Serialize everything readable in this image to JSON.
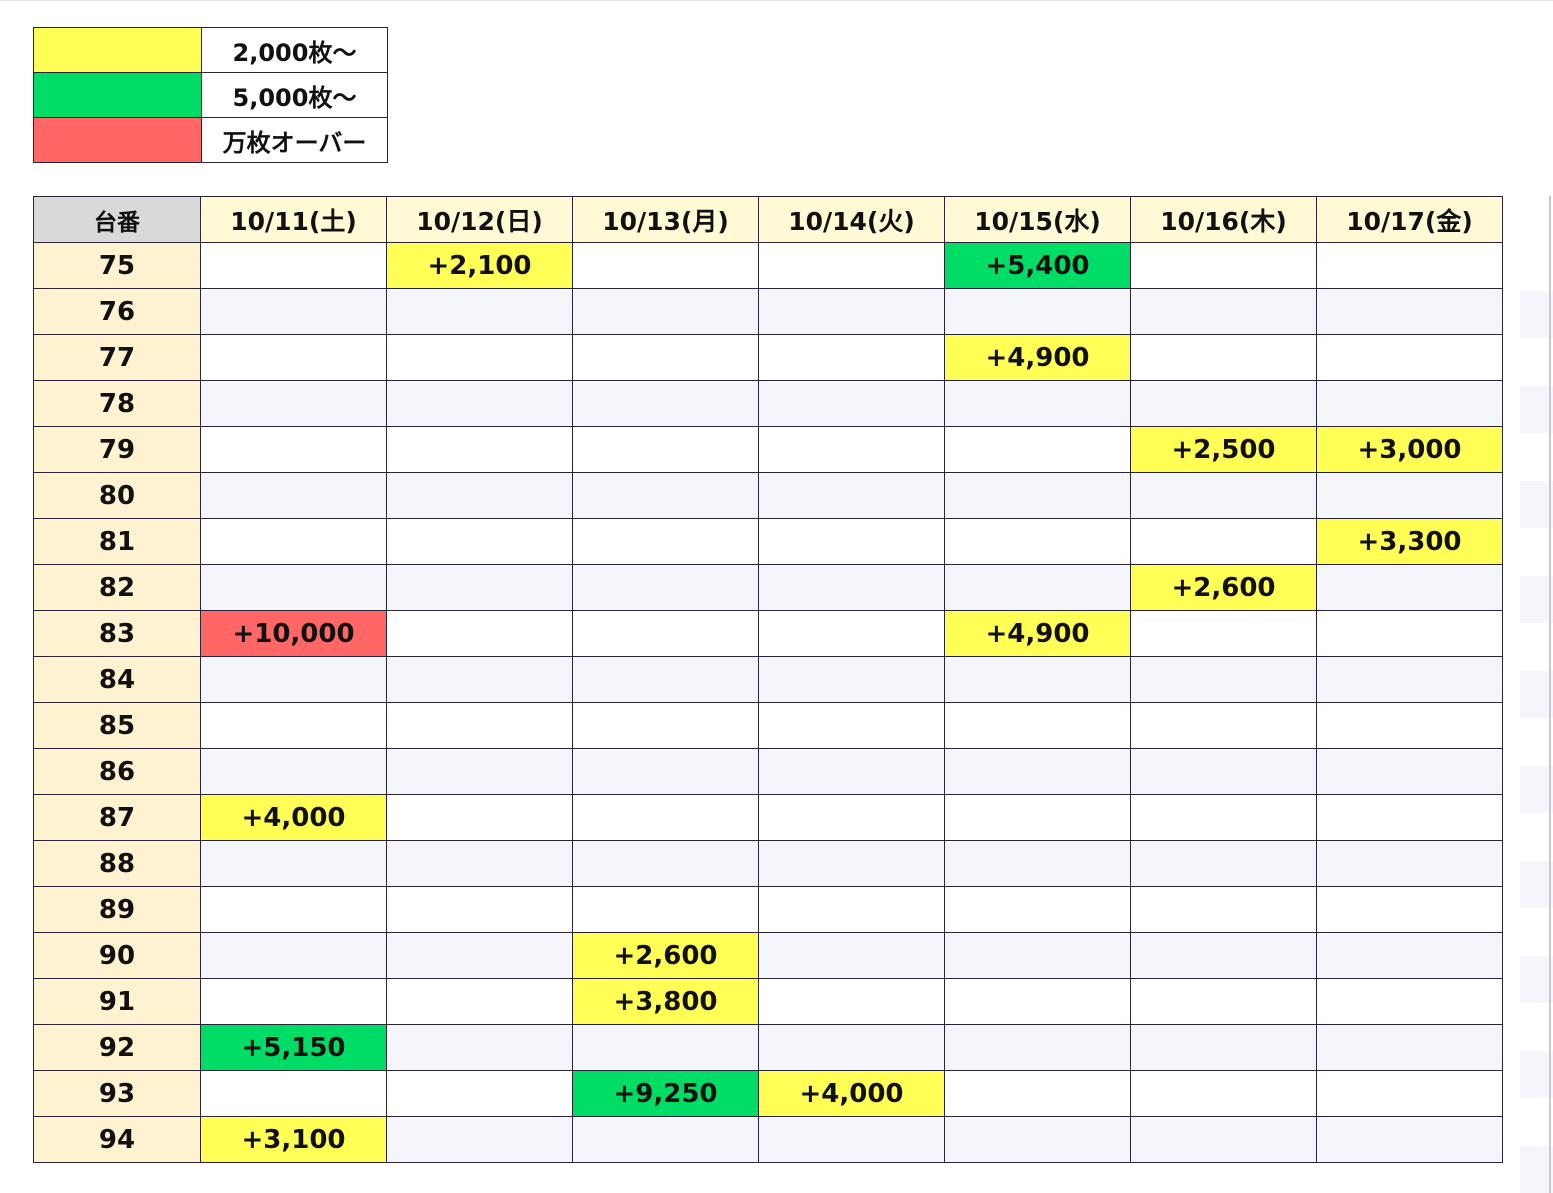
{
  "legend": [
    {
      "label": "2,000枚～",
      "color": "#ffff55"
    },
    {
      "label": "5,000枚～",
      "color": "#00dd66"
    },
    {
      "label": "万枚オーバー",
      "color": "#ff6666"
    }
  ],
  "table": {
    "corner_label": "台番",
    "dates": [
      "10/11(土)",
      "10/12(日)",
      "10/13(月)",
      "10/14(火)",
      "10/15(水)",
      "10/16(木)",
      "10/17(金)"
    ],
    "rows": [
      {
        "machine": "75",
        "cells": [
          "",
          "+2,100",
          "",
          "",
          "+5,400",
          "",
          ""
        ],
        "levels": [
          "",
          "y",
          "",
          "",
          "g",
          "",
          ""
        ]
      },
      {
        "machine": "76",
        "cells": [
          "",
          "",
          "",
          "",
          "",
          "",
          ""
        ],
        "levels": [
          "",
          "",
          "",
          "",
          "",
          "",
          ""
        ]
      },
      {
        "machine": "77",
        "cells": [
          "",
          "",
          "",
          "",
          "+4,900",
          "",
          ""
        ],
        "levels": [
          "",
          "",
          "",
          "",
          "y",
          "",
          ""
        ]
      },
      {
        "machine": "78",
        "cells": [
          "",
          "",
          "",
          "",
          "",
          "",
          ""
        ],
        "levels": [
          "",
          "",
          "",
          "",
          "",
          "",
          ""
        ]
      },
      {
        "machine": "79",
        "cells": [
          "",
          "",
          "",
          "",
          "",
          "+2,500",
          "+3,000"
        ],
        "levels": [
          "",
          "",
          "",
          "",
          "",
          "y",
          "y"
        ]
      },
      {
        "machine": "80",
        "cells": [
          "",
          "",
          "",
          "",
          "",
          "",
          ""
        ],
        "levels": [
          "",
          "",
          "",
          "",
          "",
          "",
          ""
        ]
      },
      {
        "machine": "81",
        "cells": [
          "",
          "",
          "",
          "",
          "",
          "",
          "+3,300"
        ],
        "levels": [
          "",
          "",
          "",
          "",
          "",
          "",
          "y"
        ]
      },
      {
        "machine": "82",
        "cells": [
          "",
          "",
          "",
          "",
          "",
          "+2,600",
          ""
        ],
        "levels": [
          "",
          "",
          "",
          "",
          "",
          "y",
          ""
        ]
      },
      {
        "machine": "83",
        "cells": [
          "+10,000",
          "",
          "",
          "",
          "+4,900",
          "",
          ""
        ],
        "levels": [
          "r",
          "",
          "",
          "",
          "y",
          "",
          ""
        ]
      },
      {
        "machine": "84",
        "cells": [
          "",
          "",
          "",
          "",
          "",
          "",
          ""
        ],
        "levels": [
          "",
          "",
          "",
          "",
          "",
          "",
          ""
        ]
      },
      {
        "machine": "85",
        "cells": [
          "",
          "",
          "",
          "",
          "",
          "",
          ""
        ],
        "levels": [
          "",
          "",
          "",
          "",
          "",
          "",
          ""
        ]
      },
      {
        "machine": "86",
        "cells": [
          "",
          "",
          "",
          "",
          "",
          "",
          ""
        ],
        "levels": [
          "",
          "",
          "",
          "",
          "",
          "",
          ""
        ]
      },
      {
        "machine": "87",
        "cells": [
          "+4,000",
          "",
          "",
          "",
          "",
          "",
          ""
        ],
        "levels": [
          "y",
          "",
          "",
          "",
          "",
          "",
          ""
        ]
      },
      {
        "machine": "88",
        "cells": [
          "",
          "",
          "",
          "",
          "",
          "",
          ""
        ],
        "levels": [
          "",
          "",
          "",
          "",
          "",
          "",
          ""
        ]
      },
      {
        "machine": "89",
        "cells": [
          "",
          "",
          "",
          "",
          "",
          "",
          ""
        ],
        "levels": [
          "",
          "",
          "",
          "",
          "",
          "",
          ""
        ]
      },
      {
        "machine": "90",
        "cells": [
          "",
          "",
          "+2,600",
          "",
          "",
          "",
          ""
        ],
        "levels": [
          "",
          "",
          "y",
          "",
          "",
          "",
          ""
        ]
      },
      {
        "machine": "91",
        "cells": [
          "",
          "",
          "+3,800",
          "",
          "",
          "",
          ""
        ],
        "levels": [
          "",
          "",
          "y",
          "",
          "",
          "",
          ""
        ]
      },
      {
        "machine": "92",
        "cells": [
          "+5,150",
          "",
          "",
          "",
          "",
          "",
          ""
        ],
        "levels": [
          "g",
          "",
          "",
          "",
          "",
          "",
          ""
        ]
      },
      {
        "machine": "93",
        "cells": [
          "",
          "",
          "+9,250",
          "+4,000",
          "",
          "",
          ""
        ],
        "levels": [
          "",
          "",
          "g",
          "y",
          "",
          "",
          ""
        ]
      },
      {
        "machine": "94",
        "cells": [
          "+3,100",
          "",
          "",
          "",
          "",
          "",
          ""
        ],
        "levels": [
          "y",
          "",
          "",
          "",
          "",
          "",
          ""
        ]
      }
    ]
  }
}
